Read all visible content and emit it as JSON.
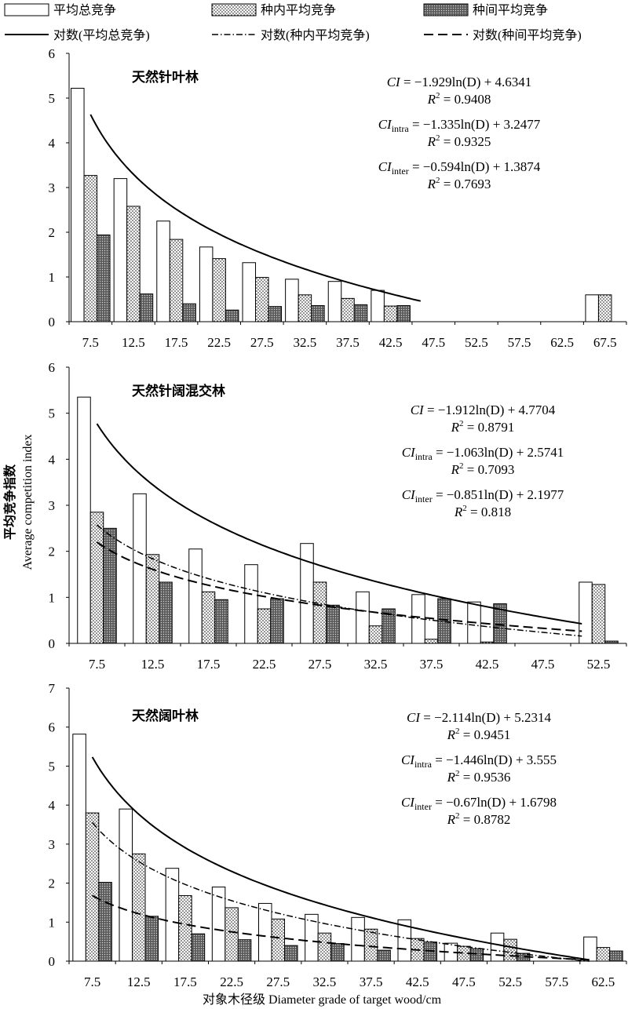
{
  "legend": {
    "total": "平均总竞争",
    "intra": "种内平均竞争",
    "inter": "种间平均竞争",
    "log_total": "对数(平均总竞争)",
    "log_intra": "对数(种内平均竞争)",
    "log_inter": "对数(种间平均竞争)"
  },
  "ylabel_cn": "平均竞争指数",
  "ylabel_en": "Average competition index",
  "xlabel": "对象木径级 Diameter grade of target wood/cm",
  "chart_data": [
    {
      "type": "bar",
      "title": "天然针叶林",
      "categories": [
        "7.5",
        "12.5",
        "17.5",
        "22.5",
        "27.5",
        "32.5",
        "37.5",
        "42.5",
        "47.5",
        "52.5",
        "57.5",
        "62.5",
        "67.5"
      ],
      "ylim": [
        0,
        6
      ],
      "yticks": [
        "0",
        "1",
        "2",
        "3",
        "4",
        "5",
        "6"
      ],
      "series": [
        {
          "name": "平均总竞争",
          "values": [
            5.22,
            3.2,
            2.25,
            1.67,
            1.32,
            0.95,
            0.9,
            0.7,
            null,
            null,
            null,
            null,
            0.6
          ]
        },
        {
          "name": "种内平均竞争",
          "values": [
            3.27,
            2.58,
            1.84,
            1.41,
            0.99,
            0.6,
            0.52,
            0.35,
            null,
            null,
            null,
            null,
            0.6
          ]
        },
        {
          "name": "种间平均竞争",
          "values": [
            1.94,
            0.62,
            0.4,
            0.26,
            0.34,
            0.36,
            0.38,
            0.36,
            null,
            null,
            null,
            null,
            null
          ]
        }
      ],
      "trendlines": [
        {
          "name": "对数(平均总竞争)",
          "a": -1.929,
          "b": 4.6341,
          "from": 1,
          "to": 8.7
        }
      ],
      "equations": [
        {
          "pre": "CI",
          "sub": "",
          "rest": " = −1.929ln(D) + 4.6341",
          "r2": "0.9408"
        },
        {
          "pre": "CI",
          "sub": "intra",
          "rest": " =  −1.335ln(D) + 3.2477",
          "r2": "0.9325"
        },
        {
          "pre": "CI",
          "sub": "inter",
          "rest": " = −0.594ln(D) + 1.3874",
          "r2": "0.7693"
        }
      ]
    },
    {
      "type": "bar",
      "title": "天然针阔混交林",
      "categories": [
        "7.5",
        "12.5",
        "17.5",
        "22.5",
        "27.5",
        "32.5",
        "37.5",
        "42.5",
        "47.5",
        "52.5"
      ],
      "ylim": [
        0,
        6
      ],
      "yticks": [
        "0",
        "1",
        "2",
        "3",
        "4",
        "5",
        "6"
      ],
      "series": [
        {
          "name": "平均总竞争",
          "values": [
            5.35,
            3.25,
            2.05,
            1.71,
            2.17,
            1.12,
            1.06,
            0.9,
            null,
            1.33
          ]
        },
        {
          "name": "种内平均竞争",
          "values": [
            2.85,
            1.93,
            1.12,
            0.75,
            1.33,
            0.38,
            0.09,
            0.03,
            null,
            1.28
          ]
        },
        {
          "name": "种间平均竞争",
          "values": [
            2.5,
            1.33,
            0.95,
            0.97,
            0.83,
            0.75,
            0.97,
            0.86,
            null,
            0.05
          ]
        }
      ],
      "trendlines": [
        {
          "name": "对数(平均总竞争)",
          "a": -1.912,
          "b": 4.7704,
          "from": 1,
          "to": 9.7
        },
        {
          "name": "对数(种内平均竞争)",
          "a": -1.063,
          "b": 2.5741,
          "from": 1,
          "to": 9.7
        },
        {
          "name": "对数(种间平均竞争)",
          "a": -0.851,
          "b": 2.1977,
          "from": 1,
          "to": 9.7
        }
      ],
      "equations": [
        {
          "pre": "CI",
          "sub": "",
          "rest": " = −1.912ln(D) + 4.7704",
          "r2": "0.8791"
        },
        {
          "pre": "CI",
          "sub": "intra",
          "rest": " = −1.063ln(D) + 2.5741",
          "r2": "0.7093"
        },
        {
          "pre": "CI",
          "sub": "inter",
          "rest": " = −0.851ln(D) + 2.1977",
          "r2": "0.818"
        }
      ]
    },
    {
      "type": "bar",
      "title": "天然阔叶林",
      "categories": [
        "7.5",
        "12.5",
        "17.5",
        "22.5",
        "27.5",
        "32.5",
        "37.5",
        "42.5",
        "47.5",
        "52.5",
        "57.5",
        "62.5"
      ],
      "ylim": [
        0,
        7
      ],
      "yticks": [
        "0",
        "1",
        "2",
        "3",
        "4",
        "5",
        "6",
        "7"
      ],
      "series": [
        {
          "name": "平均总竞争",
          "values": [
            5.82,
            3.9,
            2.38,
            1.9,
            1.48,
            1.2,
            1.12,
            1.06,
            0.46,
            0.72,
            null,
            0.62
          ]
        },
        {
          "name": "种内平均竞争",
          "values": [
            3.8,
            2.75,
            1.68,
            1.37,
            1.08,
            0.72,
            0.82,
            0.58,
            0.38,
            0.56,
            null,
            0.35
          ]
        },
        {
          "name": "种间平均竞争",
          "values": [
            2.02,
            1.15,
            0.7,
            0.55,
            0.4,
            0.45,
            0.28,
            0.49,
            0.32,
            0.2,
            null,
            0.26
          ]
        }
      ],
      "trendlines": [
        {
          "name": "对数(平均总竞争)",
          "a": -2.114,
          "b": 5.2314,
          "from": 1,
          "to": 11.7
        },
        {
          "name": "对数(种内平均竞争)",
          "a": -1.446,
          "b": 3.555,
          "from": 1,
          "to": 11.7
        },
        {
          "name": "对数(种间平均竞争)",
          "a": -0.67,
          "b": 1.6798,
          "from": 1,
          "to": 11.7
        }
      ],
      "equations": [
        {
          "pre": "CI",
          "sub": "",
          "rest": " = −2.114ln(D) + 5.2314",
          "r2": "0.9451"
        },
        {
          "pre": "CI",
          "sub": "intra",
          "rest": " = −1.446ln(D) + 3.555",
          "r2": "0.9536"
        },
        {
          "pre": "CI",
          "sub": "inter",
          "rest": " = −0.67ln(D) + 1.6798",
          "r2": "0.8782"
        }
      ]
    }
  ]
}
